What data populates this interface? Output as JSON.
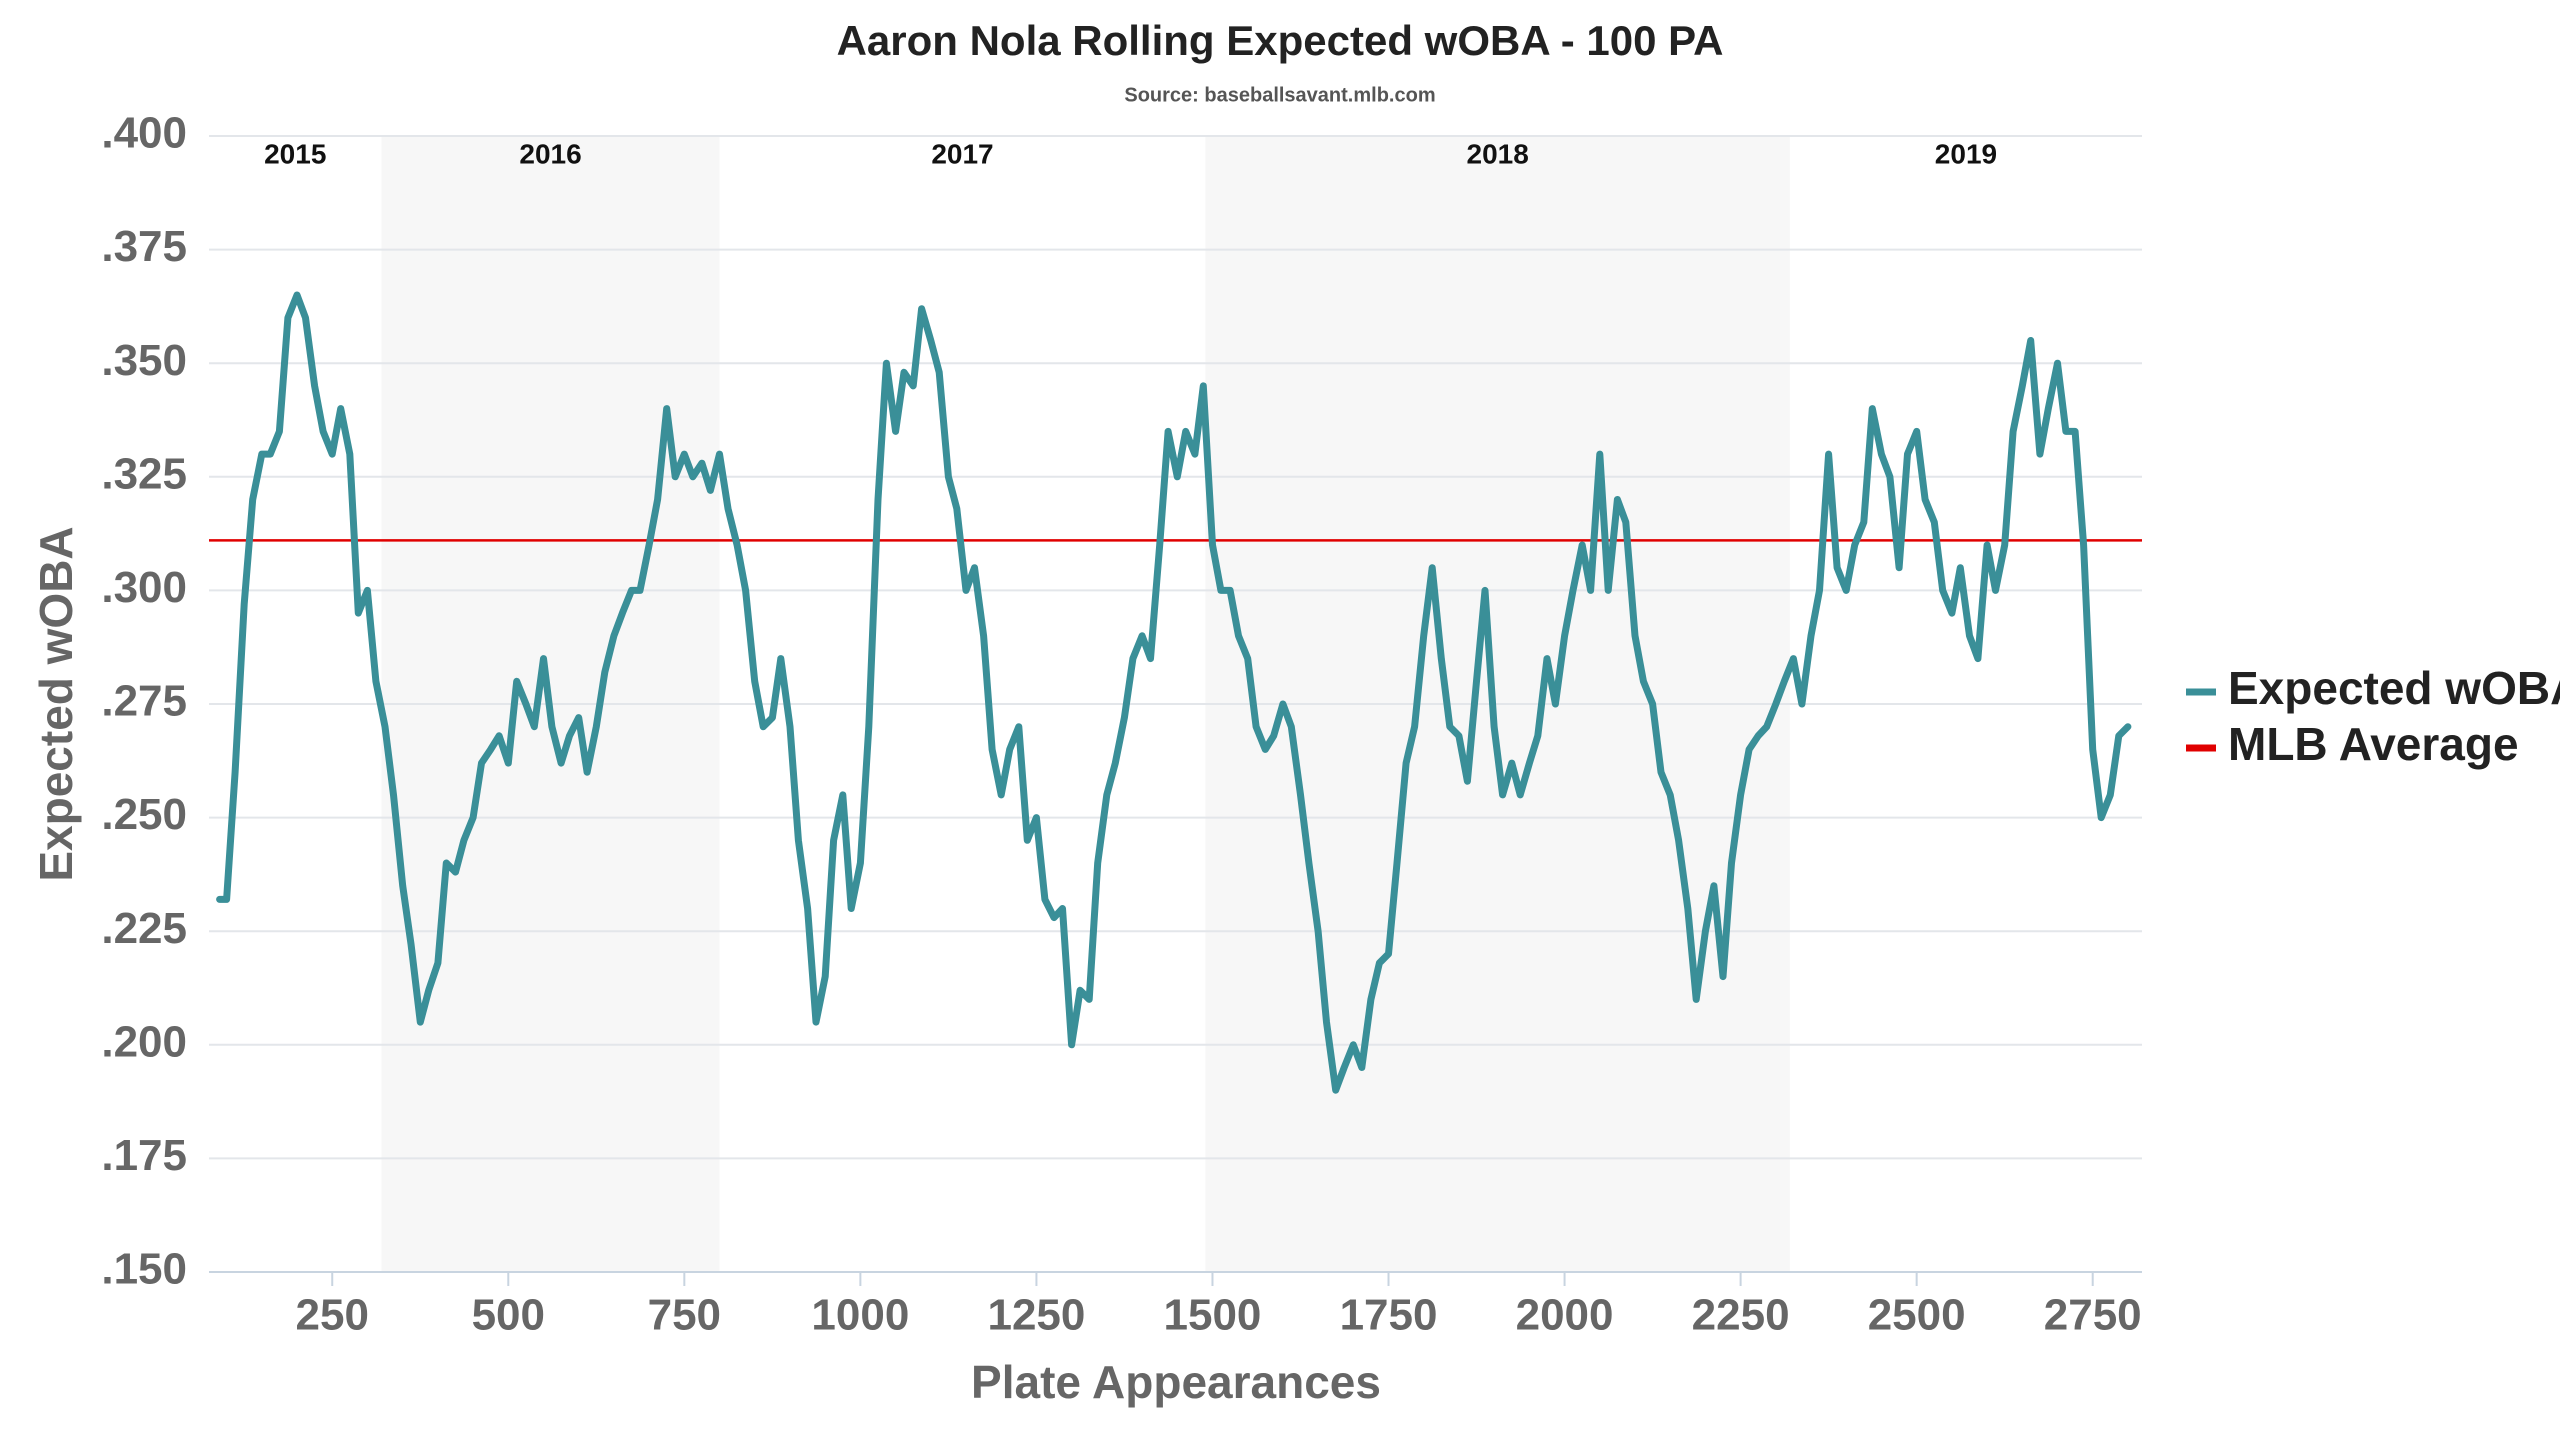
{
  "chart_data": {
    "type": "line",
    "title": "Aaron Nola Rolling Expected wOBA - 100 PA",
    "subtitle": "Source: baseballsavant.mlb.com",
    "x_label": "Plate Appearances",
    "y_label": "Expected wOBA",
    "xlim": [
      75,
      2820
    ],
    "ylim": [
      0.15,
      0.4
    ],
    "xticks": [
      250,
      500,
      750,
      1000,
      1250,
      1500,
      1750,
      2000,
      2250,
      2500,
      2750
    ],
    "yticks": [
      {
        "value": 0.15,
        "label": ".150"
      },
      {
        "value": 0.175,
        "label": ".175"
      },
      {
        "value": 0.2,
        "label": ".200"
      },
      {
        "value": 0.225,
        "label": ".225"
      },
      {
        "value": 0.25,
        "label": ".250"
      },
      {
        "value": 0.275,
        "label": ".275"
      },
      {
        "value": 0.3,
        "label": ".300"
      },
      {
        "value": 0.325,
        "label": ".325"
      },
      {
        "value": 0.35,
        "label": ".350"
      },
      {
        "value": 0.375,
        "label": ".375"
      },
      {
        "value": 0.4,
        "label": ".400"
      }
    ],
    "grid": true,
    "legend": "right",
    "seasons": [
      {
        "label": "2015",
        "start": 75,
        "end": 320,
        "shaded": false
      },
      {
        "label": "2016",
        "start": 320,
        "end": 800,
        "shaded": true
      },
      {
        "label": "2017",
        "start": 800,
        "end": 1490,
        "shaded": false
      },
      {
        "label": "2018",
        "start": 1490,
        "end": 2320,
        "shaded": true
      },
      {
        "label": "2019",
        "start": 2320,
        "end": 2820,
        "shaded": false
      }
    ],
    "reference_lines": [
      {
        "name": "MLB Average",
        "value": 0.311,
        "color": "#e00000"
      }
    ],
    "series": [
      {
        "name": "Expected wOBA",
        "color": "#3a8f98",
        "x": [
          90,
          100,
          112,
          125,
          137,
          150,
          162,
          175,
          187,
          200,
          212,
          225,
          237,
          250,
          262,
          275,
          287,
          300,
          312,
          325,
          337,
          350,
          362,
          375,
          387,
          400,
          412,
          425,
          437,
          450,
          462,
          475,
          487,
          500,
          512,
          525,
          537,
          550,
          562,
          575,
          587,
          600,
          612,
          625,
          637,
          650,
          662,
          675,
          687,
          700,
          712,
          725,
          737,
          750,
          762,
          775,
          787,
          800,
          812,
          825,
          837,
          850,
          862,
          875,
          887,
          900,
          912,
          925,
          937,
          950,
          962,
          975,
          987,
          1000,
          1012,
          1025,
          1037,
          1050,
          1062,
          1075,
          1087,
          1100,
          1112,
          1125,
          1137,
          1150,
          1162,
          1175,
          1187,
          1200,
          1212,
          1225,
          1237,
          1250,
          1262,
          1275,
          1287,
          1300,
          1312,
          1325,
          1337,
          1350,
          1362,
          1375,
          1387,
          1400,
          1412,
          1425,
          1437,
          1450,
          1462,
          1475,
          1487,
          1500,
          1512,
          1525,
          1537,
          1550,
          1562,
          1575,
          1587,
          1600,
          1612,
          1625,
          1637,
          1650,
          1662,
          1675,
          1687,
          1700,
          1712,
          1725,
          1737,
          1750,
          1762,
          1775,
          1787,
          1800,
          1812,
          1825,
          1837,
          1850,
          1862,
          1875,
          1887,
          1900,
          1912,
          1925,
          1937,
          1950,
          1962,
          1975,
          1987,
          2000,
          2012,
          2025,
          2037,
          2050,
          2062,
          2075,
          2087,
          2100,
          2112,
          2125,
          2137,
          2150,
          2162,
          2175,
          2187,
          2200,
          2212,
          2225,
          2237,
          2250,
          2262,
          2275,
          2287,
          2300,
          2312,
          2325,
          2337,
          2350,
          2362,
          2375,
          2387,
          2400,
          2412,
          2425,
          2437,
          2450,
          2462,
          2475,
          2487,
          2500,
          2512,
          2525,
          2537,
          2550,
          2562,
          2575,
          2587,
          2600,
          2612,
          2625,
          2637,
          2650,
          2662,
          2675,
          2687,
          2700,
          2712,
          2725,
          2737,
          2750,
          2762,
          2775,
          2787,
          2800
        ],
        "values": [
          0.232,
          0.232,
          0.26,
          0.297,
          0.32,
          0.33,
          0.33,
          0.335,
          0.36,
          0.365,
          0.36,
          0.345,
          0.335,
          0.33,
          0.34,
          0.33,
          0.295,
          0.3,
          0.28,
          0.27,
          0.255,
          0.235,
          0.222,
          0.205,
          0.212,
          0.218,
          0.24,
          0.238,
          0.245,
          0.25,
          0.262,
          0.265,
          0.268,
          0.262,
          0.28,
          0.275,
          0.27,
          0.285,
          0.27,
          0.262,
          0.268,
          0.272,
          0.26,
          0.27,
          0.282,
          0.29,
          0.295,
          0.3,
          0.3,
          0.31,
          0.32,
          0.34,
          0.325,
          0.33,
          0.325,
          0.328,
          0.322,
          0.33,
          0.318,
          0.31,
          0.3,
          0.28,
          0.27,
          0.272,
          0.285,
          0.27,
          0.245,
          0.23,
          0.205,
          0.215,
          0.245,
          0.255,
          0.23,
          0.24,
          0.27,
          0.32,
          0.35,
          0.335,
          0.348,
          0.345,
          0.362,
          0.355,
          0.348,
          0.325,
          0.318,
          0.3,
          0.305,
          0.29,
          0.265,
          0.255,
          0.265,
          0.27,
          0.245,
          0.25,
          0.232,
          0.228,
          0.23,
          0.2,
          0.212,
          0.21,
          0.24,
          0.255,
          0.262,
          0.272,
          0.285,
          0.29,
          0.285,
          0.31,
          0.335,
          0.325,
          0.335,
          0.33,
          0.345,
          0.31,
          0.3,
          0.3,
          0.29,
          0.285,
          0.27,
          0.265,
          0.268,
          0.275,
          0.27,
          0.255,
          0.24,
          0.225,
          0.205,
          0.19,
          0.195,
          0.2,
          0.195,
          0.21,
          0.218,
          0.22,
          0.24,
          0.262,
          0.27,
          0.29,
          0.305,
          0.285,
          0.27,
          0.268,
          0.258,
          0.28,
          0.3,
          0.27,
          0.255,
          0.262,
          0.255,
          0.262,
          0.268,
          0.285,
          0.275,
          0.29,
          0.3,
          0.31,
          0.3,
          0.33,
          0.3,
          0.32,
          0.315,
          0.29,
          0.28,
          0.275,
          0.26,
          0.255,
          0.245,
          0.23,
          0.21,
          0.225,
          0.235,
          0.215,
          0.24,
          0.255,
          0.265,
          0.268,
          0.27,
          0.275,
          0.28,
          0.285,
          0.275,
          0.29,
          0.3,
          0.33,
          0.305,
          0.3,
          0.31,
          0.315,
          0.34,
          0.33,
          0.325,
          0.305,
          0.33,
          0.335,
          0.32,
          0.315,
          0.3,
          0.295,
          0.305,
          0.29,
          0.285,
          0.31,
          0.3,
          0.31,
          0.335,
          0.345,
          0.355,
          0.33,
          0.34,
          0.35,
          0.335,
          0.335,
          0.31,
          0.265,
          0.25,
          0.255,
          0.268,
          0.27
        ]
      }
    ]
  }
}
